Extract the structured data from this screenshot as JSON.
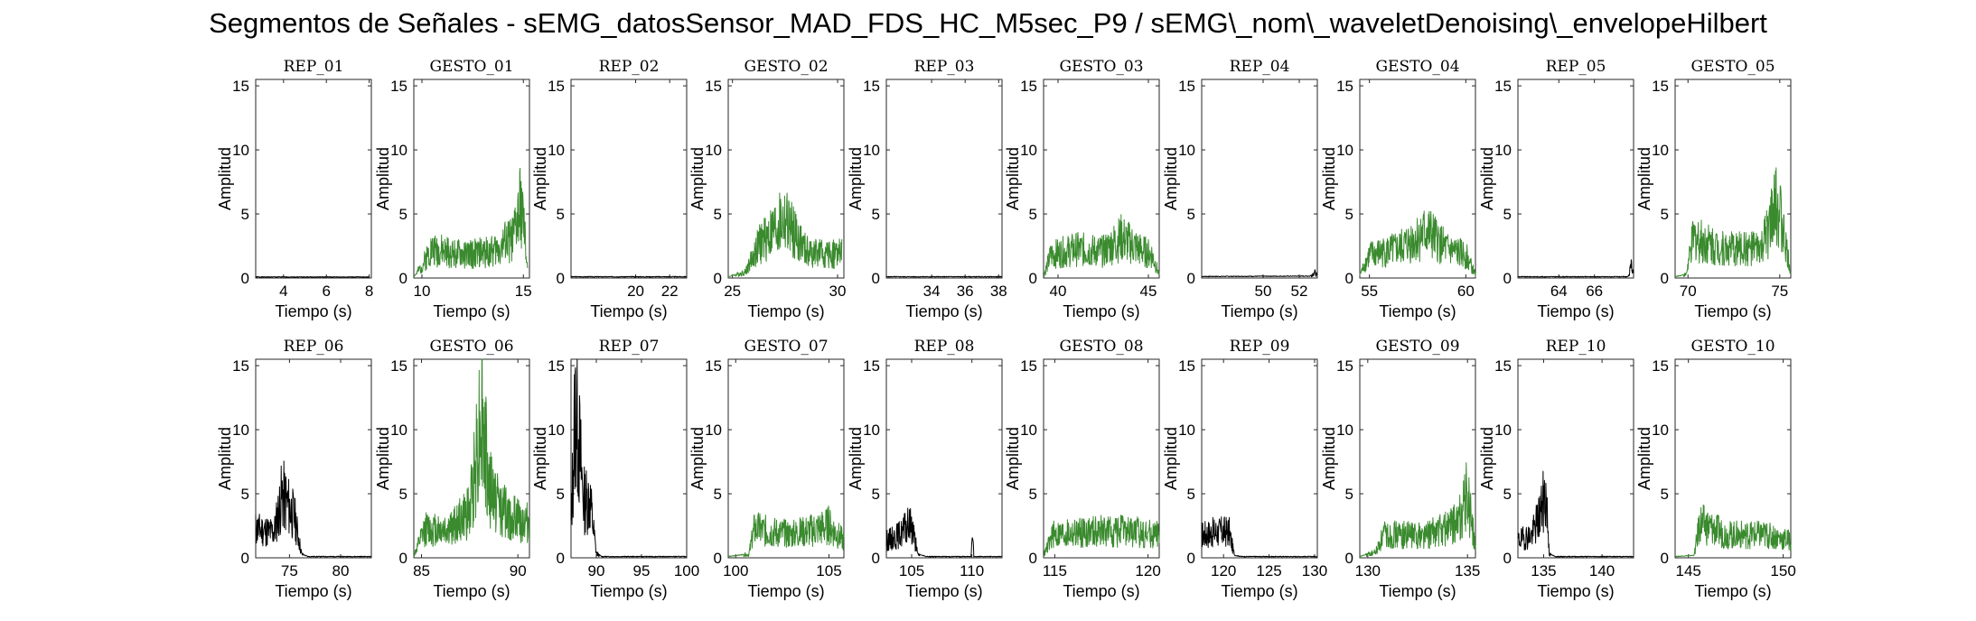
{
  "figure": {
    "title": "Segmentos de Señales - sEMG_datosSensor_MAD_FDS_HC_M5sec_P9 / sEMG\\_nom\\_waveletDenoising\\_envelopeHilbert"
  },
  "colors": {
    "rep": "#000000",
    "gesto": "#3a8a2e"
  },
  "chart_data": [
    {
      "type": "line",
      "title": "REP_01",
      "xlabel": "Tiempo (s)",
      "ylabel": "Amplitud",
      "xlim": [
        2.7,
        8.1
      ],
      "ylim": [
        0,
        15.5
      ],
      "xticks": [
        4,
        6,
        8
      ],
      "yticks": [
        0,
        5,
        10,
        15
      ],
      "color": "rep",
      "trace": {
        "start": 2.7,
        "end": 8.0,
        "peaks": [
          [
            2.7,
            0.08
          ],
          [
            8.0,
            0.08
          ]
        ],
        "seed": 1
      }
    },
    {
      "type": "line",
      "title": "GESTO_01",
      "xlabel": "Tiempo (s)",
      "ylabel": "Amplitud",
      "xlim": [
        9.6,
        15.3
      ],
      "ylim": [
        0,
        15.5
      ],
      "xticks": [
        10,
        15
      ],
      "yticks": [
        0,
        5,
        10,
        15
      ],
      "color": "gesto",
      "trace": {
        "start": 9.6,
        "end": 15.2,
        "peaks": [
          [
            9.6,
            0.1
          ],
          [
            10.0,
            1.0
          ],
          [
            10.4,
            2.5
          ],
          [
            12.0,
            2.0
          ],
          [
            13.5,
            2.3
          ],
          [
            14.5,
            3.5
          ],
          [
            14.9,
            6.5
          ],
          [
            15.2,
            1.0
          ]
        ],
        "seed": 2
      }
    },
    {
      "type": "line",
      "title": "REP_02",
      "xlabel": "Tiempo (s)",
      "ylabel": "Amplitud",
      "xlim": [
        16.2,
        23.0
      ],
      "ylim": [
        0,
        15.5
      ],
      "xticks": [
        20,
        22
      ],
      "yticks": [
        0,
        5,
        10,
        15
      ],
      "color": "rep",
      "trace": {
        "start": 16.2,
        "end": 23.0,
        "peaks": [
          [
            16.2,
            0.1
          ],
          [
            23.0,
            0.1
          ]
        ],
        "seed": 3
      }
    },
    {
      "type": "line",
      "title": "GESTO_02",
      "xlabel": "Tiempo (s)",
      "ylabel": "Amplitud",
      "xlim": [
        24.8,
        30.3
      ],
      "ylim": [
        0,
        15.5
      ],
      "xticks": [
        25,
        30
      ],
      "yticks": [
        0,
        5,
        10,
        15
      ],
      "color": "gesto",
      "trace": {
        "start": 24.8,
        "end": 30.2,
        "peaks": [
          [
            24.8,
            0.1
          ],
          [
            25.6,
            0.5
          ],
          [
            26.3,
            3.0
          ],
          [
            27.5,
            5.0
          ],
          [
            28.5,
            2.3
          ],
          [
            29.5,
            2.0
          ],
          [
            30.2,
            2.2
          ]
        ],
        "seed": 4
      }
    },
    {
      "type": "line",
      "title": "REP_03",
      "xlabel": "Tiempo (s)",
      "ylabel": "Amplitud",
      "xlim": [
        31.3,
        38.2
      ],
      "ylim": [
        0,
        15.5
      ],
      "xticks": [
        34,
        36,
        38
      ],
      "yticks": [
        0,
        5,
        10,
        15
      ],
      "color": "rep",
      "trace": {
        "start": 31.3,
        "end": 38.2,
        "peaks": [
          [
            31.3,
            0.1
          ],
          [
            38.2,
            0.1
          ]
        ],
        "seed": 5
      }
    },
    {
      "type": "line",
      "title": "GESTO_03",
      "xlabel": "Tiempo (s)",
      "ylabel": "Amplitud",
      "xlim": [
        39.2,
        45.6
      ],
      "ylim": [
        0,
        15.5
      ],
      "xticks": [
        40,
        45
      ],
      "yticks": [
        0,
        5,
        10,
        15
      ],
      "color": "gesto",
      "trace": {
        "start": 39.2,
        "end": 45.6,
        "peaks": [
          [
            39.2,
            0.2
          ],
          [
            39.6,
            2.0
          ],
          [
            41.0,
            2.5
          ],
          [
            42.5,
            2.3
          ],
          [
            43.5,
            3.5
          ],
          [
            44.5,
            2.5
          ],
          [
            45.2,
            2.0
          ],
          [
            45.6,
            0.3
          ]
        ],
        "seed": 6
      }
    },
    {
      "type": "line",
      "title": "REP_04",
      "xlabel": "Tiempo (s)",
      "ylabel": "Amplitud",
      "xlim": [
        46.6,
        53.0
      ],
      "ylim": [
        0,
        15.5
      ],
      "xticks": [
        50,
        52
      ],
      "yticks": [
        0,
        5,
        10,
        15
      ],
      "color": "rep",
      "trace": {
        "start": 46.6,
        "end": 53.0,
        "peaks": [
          [
            46.6,
            0.12
          ],
          [
            52.6,
            0.15
          ],
          [
            52.85,
            0.5
          ],
          [
            53.0,
            0.2
          ]
        ],
        "seed": 7
      }
    },
    {
      "type": "line",
      "title": "GESTO_04",
      "xlabel": "Tiempo (s)",
      "ylabel": "Amplitud",
      "xlim": [
        54.5,
        60.5
      ],
      "ylim": [
        0,
        15.5
      ],
      "xticks": [
        55,
        60
      ],
      "yticks": [
        0,
        5,
        10,
        15
      ],
      "color": "gesto",
      "trace": {
        "start": 54.5,
        "end": 60.5,
        "peaks": [
          [
            54.5,
            0.3
          ],
          [
            55.0,
            2.0
          ],
          [
            56.5,
            2.5
          ],
          [
            58.0,
            4.0
          ],
          [
            59.0,
            2.5
          ],
          [
            60.0,
            2.0
          ],
          [
            60.5,
            0.3
          ]
        ],
        "seed": 8
      }
    },
    {
      "type": "line",
      "title": "REP_05",
      "xlabel": "Tiempo (s)",
      "ylabel": "Amplitud",
      "xlim": [
        61.7,
        68.2
      ],
      "ylim": [
        0,
        15.5
      ],
      "xticks": [
        64,
        66
      ],
      "yticks": [
        0,
        5,
        10,
        15
      ],
      "color": "rep",
      "trace": {
        "start": 61.7,
        "end": 68.2,
        "peaks": [
          [
            61.7,
            0.1
          ],
          [
            67.9,
            0.1
          ],
          [
            68.1,
            1.2
          ],
          [
            68.2,
            0.5
          ]
        ],
        "seed": 9
      }
    },
    {
      "type": "line",
      "title": "GESTO_05",
      "xlabel": "Tiempo (s)",
      "ylabel": "Amplitud",
      "xlim": [
        69.3,
        75.6
      ],
      "ylim": [
        0,
        15.5
      ],
      "xticks": [
        70,
        75
      ],
      "yticks": [
        0,
        5,
        10,
        15
      ],
      "color": "gesto",
      "trace": {
        "start": 69.3,
        "end": 75.6,
        "peaks": [
          [
            69.3,
            0.1
          ],
          [
            69.9,
            0.3
          ],
          [
            70.3,
            3.5
          ],
          [
            72.0,
            2.5
          ],
          [
            74.0,
            2.5
          ],
          [
            74.9,
            6.5
          ],
          [
            75.3,
            3.0
          ],
          [
            75.6,
            0.4
          ]
        ],
        "seed": 10
      }
    },
    {
      "type": "line",
      "title": "REP_06",
      "xlabel": "Tiempo (s)",
      "ylabel": "Amplitud",
      "xlim": [
        71.7,
        83.0
      ],
      "ylim": [
        0,
        15.5
      ],
      "xticks": [
        75,
        80
      ],
      "yticks": [
        0,
        5,
        10,
        15
      ],
      "color": "rep",
      "trace": {
        "start": 71.7,
        "end": 83.0,
        "peaks": [
          [
            71.7,
            2.5
          ],
          [
            73.5,
            2.2
          ],
          [
            74.3,
            5.5
          ],
          [
            75.5,
            3.5
          ],
          [
            76.2,
            0.3
          ],
          [
            76.8,
            0.1
          ],
          [
            83.0,
            0.1
          ]
        ],
        "seed": 11
      }
    },
    {
      "type": "line",
      "title": "GESTO_06",
      "xlabel": "Tiempo (s)",
      "ylabel": "Amplitud",
      "xlim": [
        84.6,
        90.6
      ],
      "ylim": [
        0,
        15.5
      ],
      "xticks": [
        85,
        90
      ],
      "yticks": [
        0,
        5,
        10,
        15
      ],
      "color": "gesto",
      "trace": {
        "start": 84.6,
        "end": 90.6,
        "peaks": [
          [
            84.6,
            0.2
          ],
          [
            85.2,
            2.5
          ],
          [
            86.5,
            2.5
          ],
          [
            87.5,
            4.0
          ],
          [
            88.1,
            13.0
          ],
          [
            88.5,
            6.0
          ],
          [
            89.5,
            3.5
          ],
          [
            90.6,
            3.0
          ]
        ],
        "seed": 12
      }
    },
    {
      "type": "line",
      "title": "REP_07",
      "xlabel": "Tiempo (s)",
      "ylabel": "Amplitud",
      "xlim": [
        87.2,
        100.0
      ],
      "ylim": [
        0,
        15.5
      ],
      "xticks": [
        90,
        95,
        100
      ],
      "yticks": [
        0,
        5,
        10,
        15
      ],
      "color": "rep",
      "trace": {
        "start": 87.2,
        "end": 100.0,
        "peaks": [
          [
            87.2,
            3.0
          ],
          [
            87.7,
            13.5
          ],
          [
            88.6,
            5.0
          ],
          [
            89.3,
            5.0
          ],
          [
            90.0,
            0.4
          ],
          [
            90.6,
            0.1
          ],
          [
            100.0,
            0.1
          ]
        ],
        "seed": 13
      }
    },
    {
      "type": "line",
      "title": "GESTO_07",
      "xlabel": "Tiempo (s)",
      "ylabel": "Amplitud",
      "xlim": [
        99.6,
        105.8
      ],
      "ylim": [
        0,
        15.5
      ],
      "xticks": [
        100,
        105
      ],
      "yticks": [
        0,
        5,
        10,
        15
      ],
      "color": "gesto",
      "trace": {
        "start": 99.6,
        "end": 105.8,
        "peaks": [
          [
            99.6,
            0.1
          ],
          [
            100.7,
            0.3
          ],
          [
            101.0,
            2.5
          ],
          [
            103.0,
            2.0
          ],
          [
            105.0,
            2.8
          ],
          [
            105.8,
            1.5
          ]
        ],
        "seed": 14
      }
    },
    {
      "type": "line",
      "title": "REP_08",
      "xlabel": "Tiempo (s)",
      "ylabel": "Amplitud",
      "xlim": [
        102.9,
        112.5
      ],
      "ylim": [
        0,
        15.5
      ],
      "xticks": [
        105,
        110
      ],
      "yticks": [
        0,
        5,
        10,
        15
      ],
      "color": "rep",
      "trace": {
        "start": 102.9,
        "end": 112.5,
        "peaks": [
          [
            102.9,
            1.5
          ],
          [
            104.0,
            2.0
          ],
          [
            105.0,
            3.0
          ],
          [
            105.5,
            0.3
          ],
          [
            106.2,
            0.1
          ],
          [
            109.95,
            0.1
          ],
          [
            110.05,
            4.7
          ],
          [
            110.15,
            0.1
          ],
          [
            112.5,
            0.1
          ]
        ],
        "seed": 15
      }
    },
    {
      "type": "line",
      "title": "GESTO_08",
      "xlabel": "Tiempo (s)",
      "ylabel": "Amplitud",
      "xlim": [
        114.4,
        120.6
      ],
      "ylim": [
        0,
        15.5
      ],
      "xticks": [
        115,
        120
      ],
      "yticks": [
        0,
        5,
        10,
        15
      ],
      "color": "gesto",
      "trace": {
        "start": 114.4,
        "end": 120.6,
        "peaks": [
          [
            114.4,
            0.2
          ],
          [
            114.9,
            2.0
          ],
          [
            117.0,
            2.3
          ],
          [
            119.0,
            2.3
          ],
          [
            120.6,
            2.0
          ]
        ],
        "seed": 16
      }
    },
    {
      "type": "line",
      "title": "REP_09",
      "xlabel": "Tiempo (s)",
      "ylabel": "Amplitud",
      "xlim": [
        117.6,
        130.3
      ],
      "ylim": [
        0,
        15.5
      ],
      "xticks": [
        120,
        125,
        130
      ],
      "yticks": [
        0,
        5,
        10,
        15
      ],
      "color": "rep",
      "trace": {
        "start": 117.6,
        "end": 130.3,
        "peaks": [
          [
            117.6,
            2.0
          ],
          [
            119.0,
            2.2
          ],
          [
            120.6,
            2.3
          ],
          [
            121.2,
            0.2
          ],
          [
            122.0,
            0.1
          ],
          [
            130.3,
            0.1
          ]
        ],
        "seed": 17
      }
    },
    {
      "type": "line",
      "title": "GESTO_09",
      "xlabel": "Tiempo (s)",
      "ylabel": "Amplitud",
      "xlim": [
        129.6,
        135.4
      ],
      "ylim": [
        0,
        15.5
      ],
      "xticks": [
        130,
        135
      ],
      "yticks": [
        0,
        5,
        10,
        15
      ],
      "color": "gesto",
      "trace": {
        "start": 129.6,
        "end": 135.4,
        "peaks": [
          [
            129.6,
            0.1
          ],
          [
            130.4,
            0.5
          ],
          [
            130.8,
            2.0
          ],
          [
            133.0,
            2.0
          ],
          [
            134.5,
            3.0
          ],
          [
            135.0,
            5.5
          ],
          [
            135.4,
            0.8
          ]
        ],
        "seed": 18
      }
    },
    {
      "type": "line",
      "title": "REP_10",
      "xlabel": "Tiempo (s)",
      "ylabel": "Amplitud",
      "xlim": [
        132.8,
        142.7
      ],
      "ylim": [
        0,
        15.5
      ],
      "xticks": [
        135,
        140
      ],
      "yticks": [
        0,
        5,
        10,
        15
      ],
      "color": "rep",
      "trace": {
        "start": 132.8,
        "end": 142.7,
        "peaks": [
          [
            132.8,
            1.5
          ],
          [
            134.0,
            2.0
          ],
          [
            134.6,
            3.5
          ],
          [
            135.2,
            5.5
          ],
          [
            135.5,
            0.3
          ],
          [
            136.0,
            0.1
          ],
          [
            142.7,
            0.1
          ]
        ],
        "seed": 19
      }
    },
    {
      "type": "line",
      "title": "GESTO_10",
      "xlabel": "Tiempo (s)",
      "ylabel": "Amplitud",
      "xlim": [
        144.3,
        150.4
      ],
      "ylim": [
        0,
        15.5
      ],
      "xticks": [
        145,
        150
      ],
      "yticks": [
        0,
        5,
        10,
        15
      ],
      "color": "gesto",
      "trace": {
        "start": 144.3,
        "end": 150.4,
        "peaks": [
          [
            144.3,
            0.1
          ],
          [
            145.3,
            0.2
          ],
          [
            145.6,
            3.0
          ],
          [
            147.0,
            2.0
          ],
          [
            149.0,
            2.0
          ],
          [
            150.4,
            1.5
          ]
        ],
        "seed": 20
      }
    }
  ]
}
